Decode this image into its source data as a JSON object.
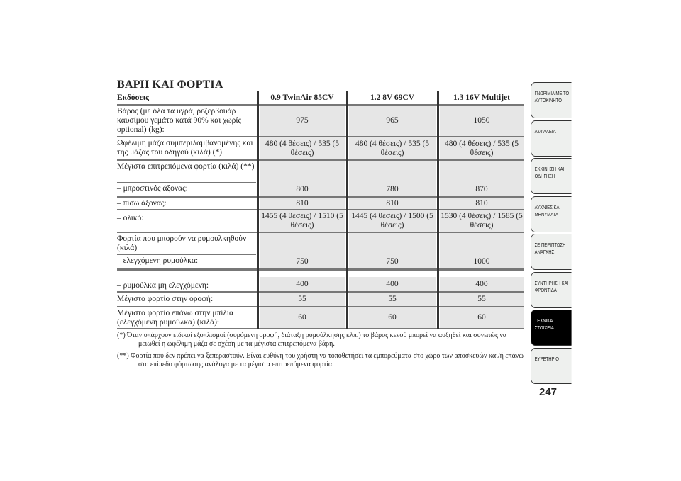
{
  "title": "ΒΑΡΗ ΚΑΙ ΦΟΡΤΙΑ",
  "table": {
    "headers": [
      "Εκδόσεις",
      "0.9 TwinAir 85CV",
      "1.2 8V 69CV",
      "1.3 16V Multijet"
    ],
    "rows": [
      {
        "label": "Βάρος (με όλα τα υγρά, ρεζερβουάρ καυσίμου γεμάτο κατά 90% και χωρίς optional) (kg):",
        "values": [
          "975",
          "965",
          "1050"
        ]
      },
      {
        "label": "Ωφέλιμη μάζα συμπεριλαμβανομένης και της μάζας του οδηγού (κιλά) (*)",
        "values": [
          "480 (4 θέσεις) / 535 (5 θέσεις)",
          "480 (4 θέσεις) / 535 (5 θέσεις)",
          "480 (4 θέσεις) / 535 (5 θέσεις)"
        ]
      },
      {
        "label": "Μέγιστα επιτρεπόμενα φορτία (κιλά) (**)",
        "sublabel": "– μπροστινός άξονας:",
        "values": [
          "800",
          "780",
          "870"
        ]
      },
      {
        "label": "– πίσω άξονας:",
        "values": [
          "810",
          "810",
          "810"
        ]
      },
      {
        "label": "– ολικό:",
        "values": [
          "1455 (4 θέσεις) / 1510 (5 θέσεις)",
          "1445 (4 θέσεις) / 1500 (5 θέσεις)",
          "1530 (4 θέσεις) / 1585 (5 θέσεις)"
        ]
      },
      {
        "label": "Φορτία που μπορούν να ρυμουλκηθούν (κιλά)",
        "sublabel": "– ελεγχόμενη ρυμούλκα:",
        "values": [
          "750",
          "750",
          "1000"
        ]
      },
      {
        "label": "– ρυμούλκα μη ελεγχόμενη:",
        "values": [
          "400",
          "400",
          "400"
        ]
      },
      {
        "label": "Μέγιστο φορτίο στην οροφή:",
        "values": [
          "55",
          "55",
          "55"
        ]
      },
      {
        "label": "Μέγιστο φορτίο επάνω στην μπίλια (ελεγχόμενη ρυμούλκα) (κιλά):",
        "values": [
          "60",
          "60",
          "60"
        ]
      }
    ]
  },
  "footnotes": [
    "(*) Όταν υπάρχουν ειδικοί εξοπλισμοί (συρόμενη οροφή, διάταξη ρυμούλκησης κλπ.) το βάρος κενού μπορεί να αυξηθεί και συνεπώς να μειωθεί η ωφέλιμη μάζα σε σχέση με τα μέγιστα επιτρεπόμενα βάρη.",
    "(**) Φορτία που δεν πρέπει να ξεπεραστούν. Είναι ευθύνη του χρήστη να τοποθετήσει τα εμπορεύματα στο χώρο των αποσκευών και/ή επάνω στο επίπεδο φόρτωσης ανάλογα με τα μέγιστα επιτρεπόμενα φορτία."
  ],
  "tabs": [
    {
      "label": "ΓΝΩΡΙΜΙΑ ΜΕ ΤΟ ΑΥΤΟΚΙΝΗΤΟ"
    },
    {
      "label": "ΑΣΦΑΛΕΙΑ"
    },
    {
      "label": "ΕΚΚΙΝΗΣΗ ΚΑΙ ΟΔΗΓΗΣΗ"
    },
    {
      "label": "ΛΥΧΝΙΕΣ ΚΑΙ ΜΗΝΥΜΑΤΑ"
    },
    {
      "label": "ΣΕ ΠΕΡΙΠΤΩΣΗ ΑΝΑΓΚΗΣ"
    },
    {
      "label": "ΣΥΝΤΗΡΗΣΗ ΚΑΙ ΦΡΟΝΤΙΔΑ"
    },
    {
      "label": "ΤΕΧΝΙΚΑ ΣΤΟΙΧΕΙΑ",
      "active": true
    },
    {
      "label": "ΕΥΡΕΤΗΡΙΟ"
    }
  ],
  "page_number": "247"
}
